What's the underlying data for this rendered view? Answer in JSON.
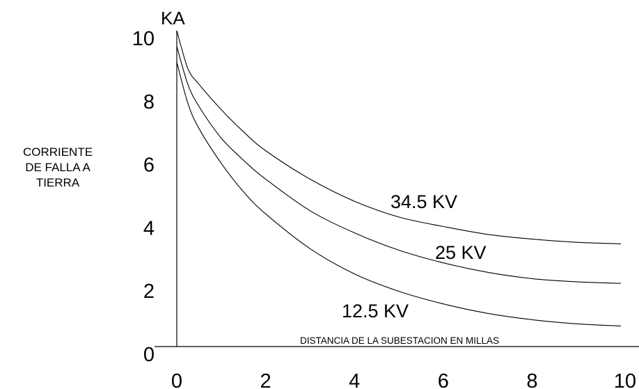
{
  "chart_data": {
    "type": "line",
    "y_unit": "KA",
    "ylabel": [
      "CORRIENTE",
      "DE FALLA A",
      "TIERRA"
    ],
    "xlabel": "DISTANCIA DE LA SUBESTACION EN MILLAS",
    "xlim": [
      0,
      10
    ],
    "ylim": [
      0,
      10
    ],
    "x_ticks": [
      "0",
      "2",
      "4",
      "6",
      "8",
      "10"
    ],
    "y_ticks": [
      "0",
      "2",
      "4",
      "6",
      "8",
      "10"
    ],
    "grid": false,
    "legend": "none",
    "series": [
      {
        "name": "34.5 KV",
        "x": [
          0,
          0.25,
          0.5,
          1,
          1.5,
          2,
          3,
          4,
          5,
          6,
          7,
          8,
          9,
          10
        ],
        "values": [
          10,
          8.8,
          8.3,
          7.5,
          6.8,
          6.2,
          5.3,
          4.6,
          4.1,
          3.8,
          3.55,
          3.4,
          3.3,
          3.25
        ]
      },
      {
        "name": "25 KV",
        "x": [
          0,
          0.25,
          0.5,
          1,
          1.5,
          2,
          3,
          4,
          5,
          6,
          7,
          8,
          9,
          10
        ],
        "values": [
          9.5,
          8.3,
          7.6,
          6.6,
          5.9,
          5.3,
          4.3,
          3.6,
          3.05,
          2.65,
          2.35,
          2.15,
          2.05,
          2.0
        ]
      },
      {
        "name": "12.5 KV",
        "x": [
          0,
          0.25,
          0.5,
          1,
          1.5,
          2,
          3,
          4,
          5,
          6,
          7,
          8,
          9,
          10
        ],
        "values": [
          9.0,
          7.7,
          6.9,
          5.8,
          4.9,
          4.2,
          3.1,
          2.3,
          1.75,
          1.35,
          1.05,
          0.85,
          0.72,
          0.65
        ]
      }
    ]
  }
}
